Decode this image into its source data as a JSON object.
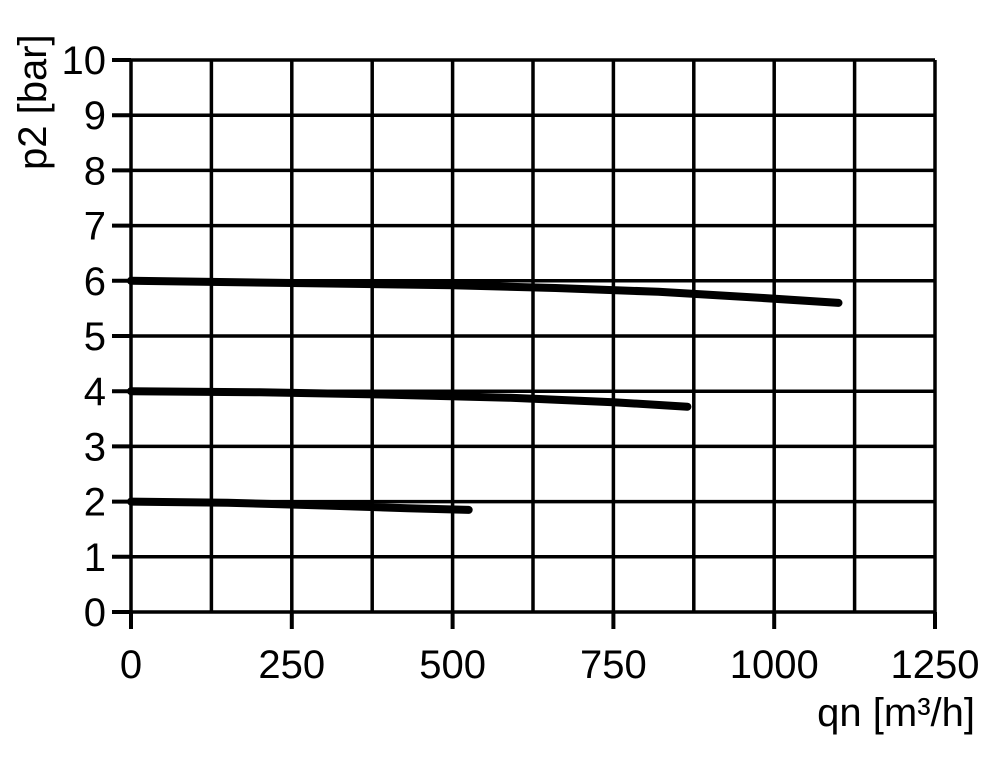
{
  "chart_data": {
    "type": "line",
    "title": "",
    "xlabel": "qn [m³/h]",
    "ylabel": "p2 [bar]",
    "xlim": [
      0,
      1250
    ],
    "ylim": [
      0,
      10
    ],
    "x_tick_labels": [
      "0",
      "250",
      "500",
      "750",
      "1000",
      "1250"
    ],
    "x_tick_values": [
      0,
      250,
      500,
      750,
      1000,
      1250
    ],
    "x_grid_step": 125,
    "y_tick_labels": [
      "0",
      "1",
      "2",
      "3",
      "4",
      "5",
      "6",
      "7",
      "8",
      "9",
      "10"
    ],
    "y_tick_values": [
      0,
      1,
      2,
      3,
      4,
      5,
      6,
      7,
      8,
      9,
      10
    ],
    "y_grid_step": 1,
    "grid": "on",
    "legend": "none",
    "colors": {
      "background": "#ffffff",
      "ink": "#000000"
    },
    "series": [
      {
        "id": "curve-p2-6bar",
        "start_pressure_bar": 6.0,
        "points": [
          [
            0,
            6.0
          ],
          [
            250,
            5.96
          ],
          [
            500,
            5.92
          ],
          [
            660,
            5.87
          ],
          [
            820,
            5.8
          ],
          [
            980,
            5.69
          ],
          [
            1100,
            5.6
          ]
        ]
      },
      {
        "id": "curve-p2-4bar",
        "start_pressure_bar": 4.0,
        "points": [
          [
            0,
            4.0
          ],
          [
            200,
            3.98
          ],
          [
            390,
            3.94
          ],
          [
            590,
            3.88
          ],
          [
            750,
            3.8
          ],
          [
            865,
            3.72
          ]
        ]
      },
      {
        "id": "curve-p2-2bar",
        "start_pressure_bar": 2.0,
        "points": [
          [
            0,
            2.0
          ],
          [
            150,
            1.98
          ],
          [
            300,
            1.93
          ],
          [
            430,
            1.88
          ],
          [
            525,
            1.85
          ]
        ]
      }
    ]
  }
}
